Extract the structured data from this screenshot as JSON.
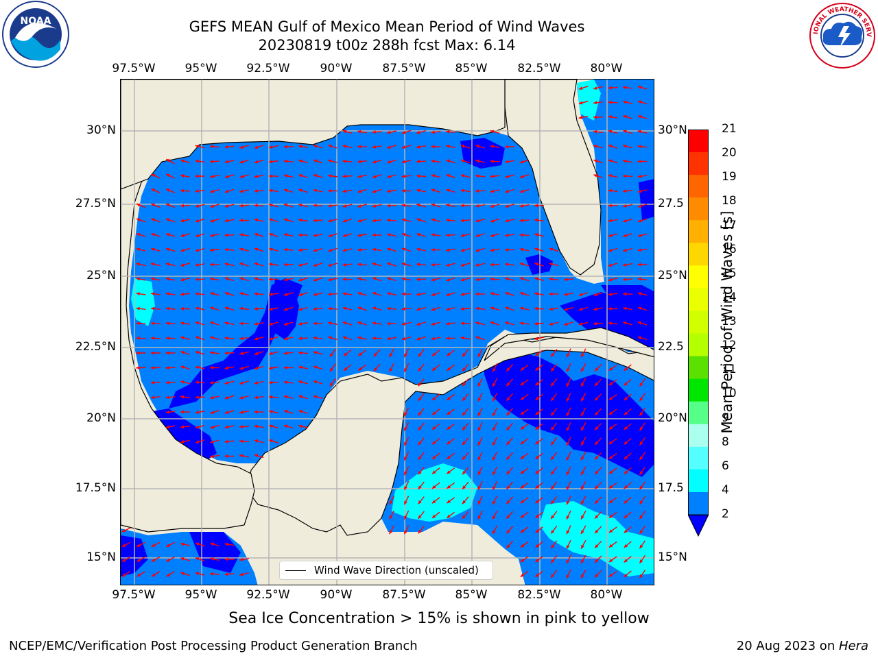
{
  "header": {
    "title_line1": "GEFS MEAN Gulf of Mexico Mean Period of Wind Waves",
    "title_line2": "20230819 t00z 288h fcst   Max: 6.14"
  },
  "logos": {
    "left": {
      "name": "noaa-logo",
      "text": "NOAA"
    },
    "right": {
      "name": "nws-logo",
      "text": "NATIONAL WEATHER SERVICE"
    }
  },
  "map": {
    "lon_ticks_top": [
      "97.5°W",
      "95°W",
      "92.5°W",
      "90°W",
      "87.5°W",
      "85°W",
      "82.5°W",
      "80°W"
    ],
    "lon_ticks_bottom": [
      "97.5°W",
      "95°W",
      "92.5°W",
      "90°W",
      "87.5°W",
      "85°W",
      "82.5°W",
      "80°W"
    ],
    "lat_ticks_left": [
      "30°N",
      "27.5°N",
      "25°N",
      "22.5°N",
      "20°N",
      "17.5°N",
      "15°N"
    ],
    "lat_ticks_right": [
      "30°N",
      "27.5",
      "25°N",
      "22.5",
      "20°N",
      "17.5",
      "15°N"
    ],
    "land_color": "#efecdc",
    "arrow_color": "#ff0000",
    "legend": "Wind Wave Direction (unscaled)"
  },
  "colorbar": {
    "label": "Mean Period of Wind Waves [s]",
    "ticks": [
      "21",
      "20",
      "19",
      "18",
      "17",
      "16",
      "15",
      "14",
      "13",
      "12",
      "11",
      "10",
      "9",
      "8",
      "6",
      "4",
      "2"
    ],
    "colors": [
      "#ff0000",
      "#ff3300",
      "#ff6600",
      "#ff8c00",
      "#ffb000",
      "#ffd700",
      "#ffff00",
      "#eaff00",
      "#d2ff00",
      "#b4ff00",
      "#5ae100",
      "#00e600",
      "#55ff88",
      "#aaffee",
      "#55ffff",
      "#00ffff",
      "#0080ff"
    ],
    "under_color": "#0000ff"
  },
  "notes": {
    "sea_ice": "Sea Ice Concentration > 15% is shown in pink to yellow"
  },
  "footer": {
    "left": "NCEP/EMC/Verification Post Processing Product Generation Branch",
    "right_prefix": "20 Aug 2023 on ",
    "right_italic": "Hera"
  }
}
